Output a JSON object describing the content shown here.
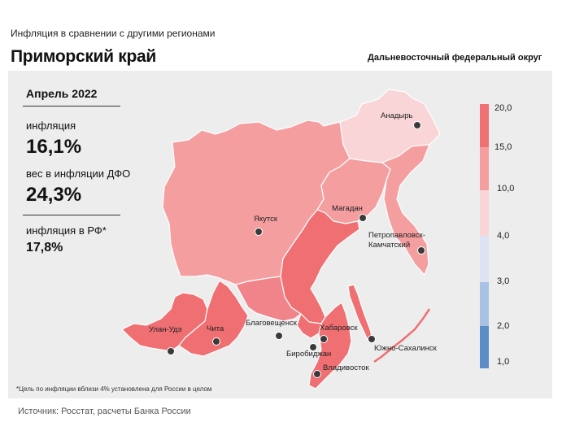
{
  "header": {
    "subtitle": "Инфляция  в сравнении  с другими регионами",
    "title": "Приморский край",
    "district": "Дальневосточный федеральный округ"
  },
  "stats": {
    "period": "Апрель 2022",
    "inflation_label": "инфляция",
    "inflation_value": "16,1%",
    "weight_label": "вес в инфляции ДФО",
    "weight_value": "24,3%",
    "russia_label": "инфляция  в РФ*",
    "russia_value": "17,8%"
  },
  "legend": {
    "ticks": [
      "20,0",
      "15,0",
      "10,0",
      "4,0",
      "3,0",
      "2,0",
      "1,0"
    ],
    "colors": [
      "#ef6f72",
      "#f59ea0",
      "#f9d5d7",
      "#dde3f1",
      "#a9c1e2",
      "#5c8dc8"
    ]
  },
  "cities": [
    {
      "name": "Анадырь"
    },
    {
      "name": "Якутск"
    },
    {
      "name": "Магадан"
    },
    {
      "name": "Петропавловск-"
    },
    {
      "name": "Камчатский"
    },
    {
      "name": "Улан-Удэ"
    },
    {
      "name": "Чита"
    },
    {
      "name": "Благовещенск"
    },
    {
      "name": "Хабаровск"
    },
    {
      "name": "Биробиджан"
    },
    {
      "name": "Владивосток"
    },
    {
      "name": "Южно-Сахалинск"
    }
  ],
  "map_colors": {
    "high": "#ef6f72",
    "mid_high": "#f0848a",
    "mid": "#f59ea0",
    "light": "#f9d5d7",
    "border": "#ffffff"
  },
  "footnote": "*Цель по инфляции вблизи 4% установлена для России в целом",
  "source": "Источник: Росстат, расчеты Банка  России"
}
